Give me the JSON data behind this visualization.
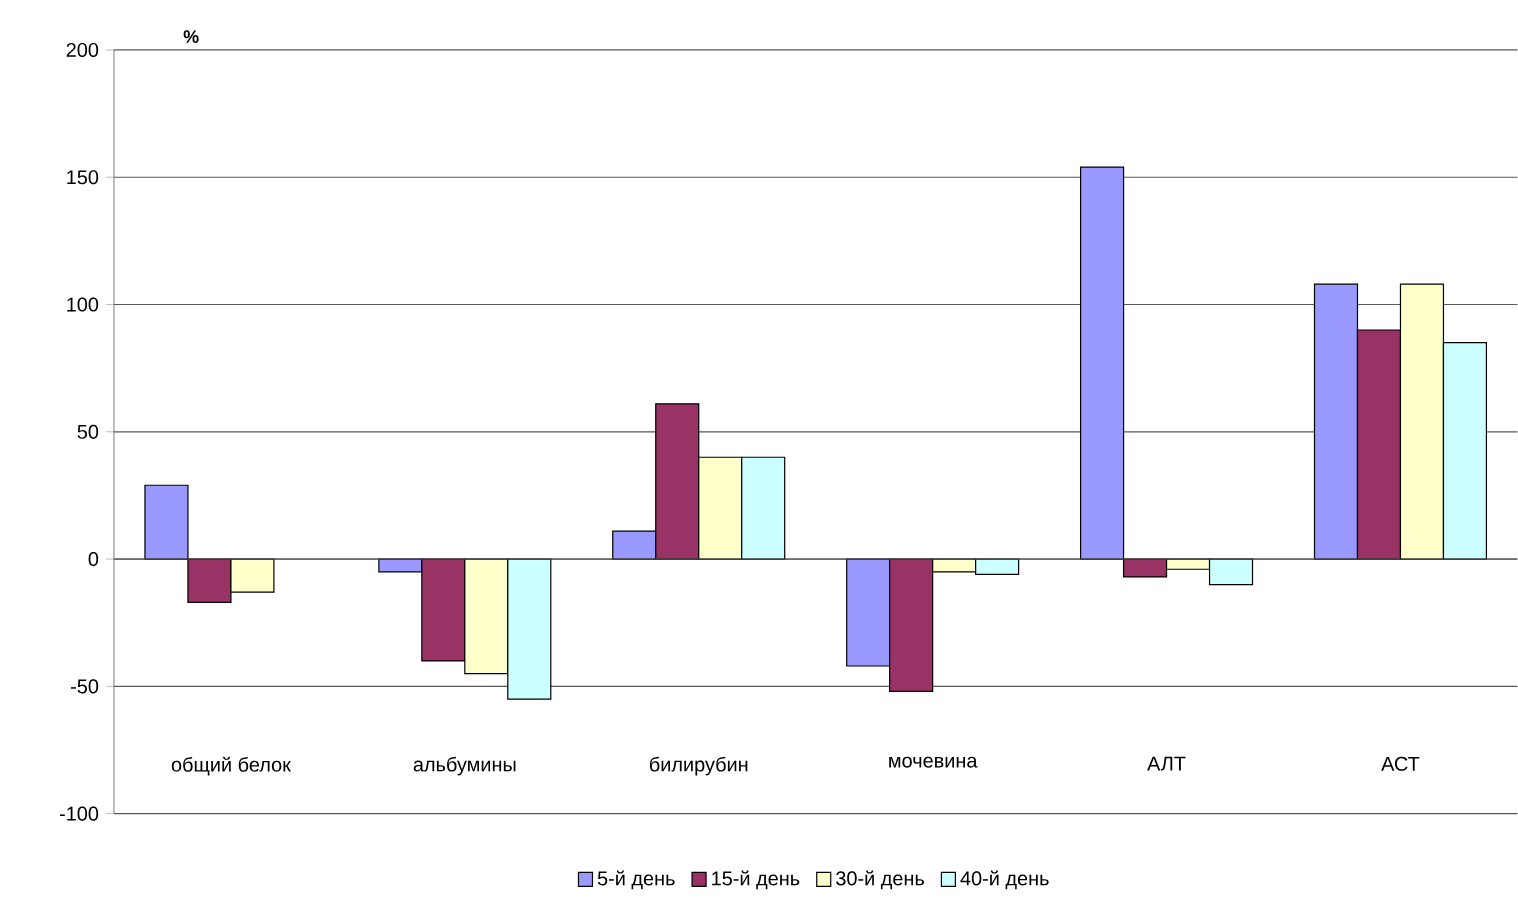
{
  "chart_data": {
    "type": "bar",
    "ylabel": "%",
    "categories": [
      "общий белок",
      "альбумины",
      "билирубин",
      "мочевина",
      "АЛТ",
      "АСТ"
    ],
    "series": [
      {
        "name": "5-й день",
        "color": "#9999ff",
        "values": [
          29,
          -5,
          11,
          -42,
          154,
          108
        ]
      },
      {
        "name": "15-й день",
        "color": "#993366",
        "values": [
          -17,
          -40,
          61,
          -52,
          -7,
          90
        ]
      },
      {
        "name": "30-й день",
        "color": "#ffffcc",
        "values": [
          -13,
          -45,
          40,
          -5,
          -4,
          108
        ]
      },
      {
        "name": "40-й день",
        "color": "#ccffff",
        "values": [
          null,
          -55,
          40,
          -6,
          -10,
          85
        ]
      }
    ],
    "ylim": [
      -100,
      200
    ],
    "yticks": [
      -100,
      -50,
      0,
      50,
      100,
      150,
      200
    ],
    "grid": "y",
    "legend": "bottom"
  }
}
